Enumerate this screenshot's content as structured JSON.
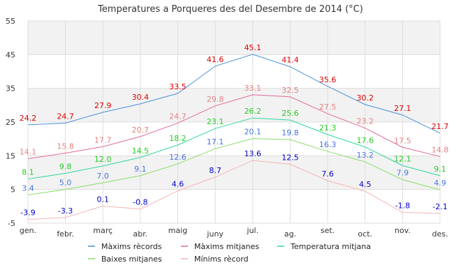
{
  "chart_data": {
    "type": "line",
    "title": "Temperatures a Porqueres des del Desembre de 2014 (°C)",
    "xlabel": "",
    "ylabel": "",
    "ylim": [
      -5,
      55
    ],
    "yticks": [
      -5,
      5,
      15,
      25,
      35,
      45,
      55
    ],
    "grid": true,
    "alternating_bands": true,
    "legend_position": "bottom",
    "categories": [
      "gen.",
      "febr.",
      "març",
      "abr.",
      "maig",
      "juny",
      "jul.",
      "ag.",
      "set.",
      "oct.",
      "nov.",
      "des."
    ],
    "series": [
      {
        "name": "Màxims rècords",
        "color": "#4a90d9",
        "label_color": "#dd0000",
        "values": [
          24.2,
          24.7,
          27.9,
          30.4,
          33.5,
          41.6,
          45.1,
          41.4,
          35.6,
          30.2,
          27.1,
          21.7
        ]
      },
      {
        "name": "Màxims mitjanes",
        "color": "#e0689a",
        "label_color": "#e88080",
        "values": [
          14.1,
          15.8,
          17.7,
          20.7,
          24.7,
          29.8,
          33.1,
          32.5,
          27.5,
          23.2,
          17.5,
          14.8
        ]
      },
      {
        "name": "Temperatura mitjana",
        "color": "#30d7a0",
        "label_color": "#22cc22",
        "values": [
          8.1,
          9.8,
          12.0,
          14.5,
          18.2,
          23.1,
          26.2,
          25.6,
          21.3,
          17.6,
          12.1,
          9.1
        ]
      },
      {
        "name": "Baixes mitjanes",
        "color": "#88dd66",
        "label_color": "#4477dd",
        "values": [
          3.4,
          5.0,
          7.0,
          9.1,
          12.6,
          17.1,
          20.1,
          19.8,
          16.3,
          13.2,
          7.9,
          4.9
        ]
      },
      {
        "name": "Mínims rècord",
        "color": "#f4b4b4",
        "label_color": "#0000cc",
        "values": [
          -3.9,
          -3.3,
          0.1,
          -0.8,
          4.6,
          8.7,
          13.6,
          12.5,
          7.6,
          4.5,
          -1.8,
          -2.1
        ]
      }
    ]
  }
}
